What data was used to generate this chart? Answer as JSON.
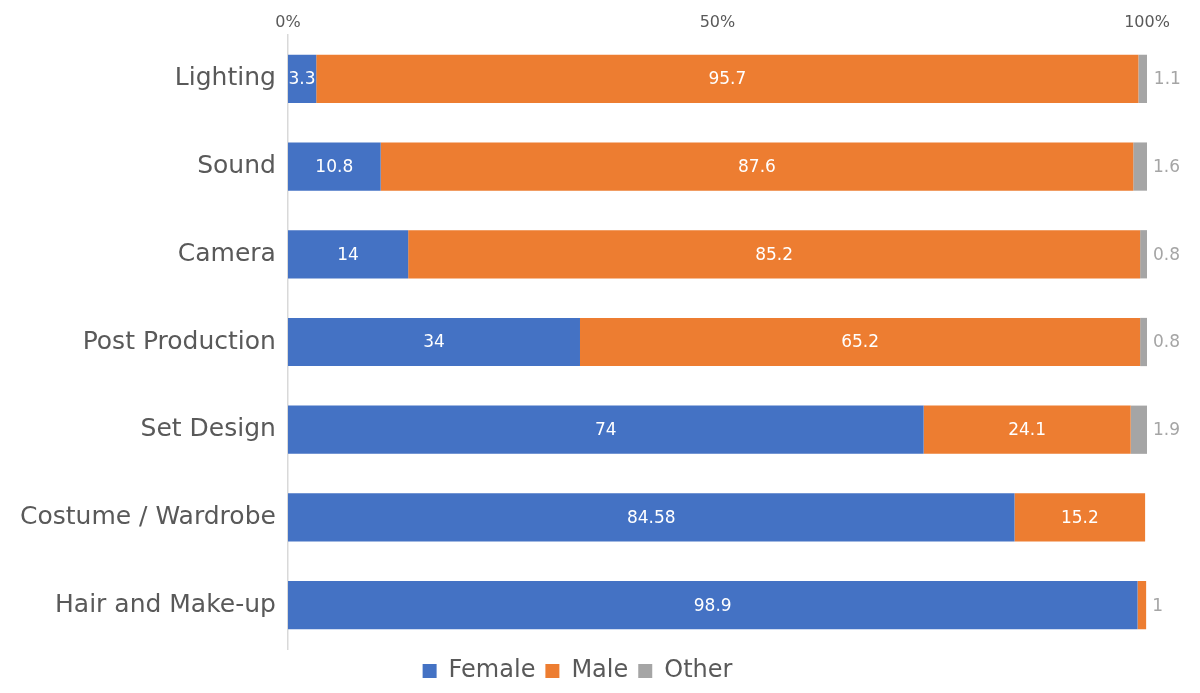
{
  "chart_data": {
    "type": "bar",
    "orientation": "horizontal",
    "stacked": true,
    "categories": [
      "Lighting",
      "Sound",
      "Camera",
      "Post Production",
      "Set Design",
      "Costume / Wardrobe",
      "Hair and Make-up"
    ],
    "series": [
      {
        "name": "Female",
        "color": "#4472c4",
        "values": [
          3.3,
          10.8,
          14,
          34,
          74,
          84.58,
          98.9
        ]
      },
      {
        "name": "Male",
        "color": "#ed7d31",
        "values": [
          95.7,
          87.6,
          85.2,
          65.2,
          24.1,
          15.2,
          1
        ]
      },
      {
        "name": "Other",
        "color": "#a5a5a5",
        "values": [
          1.1,
          1.6,
          0.8,
          0.8,
          1.9,
          null,
          null
        ]
      }
    ],
    "xlim": [
      0,
      100
    ],
    "xticks": [
      {
        "value": 0,
        "label": "0%"
      },
      {
        "value": 50,
        "label": "50%"
      },
      {
        "value": 100,
        "label": "100%"
      }
    ],
    "data_labels": true,
    "grid": false,
    "legend": "bottom"
  }
}
